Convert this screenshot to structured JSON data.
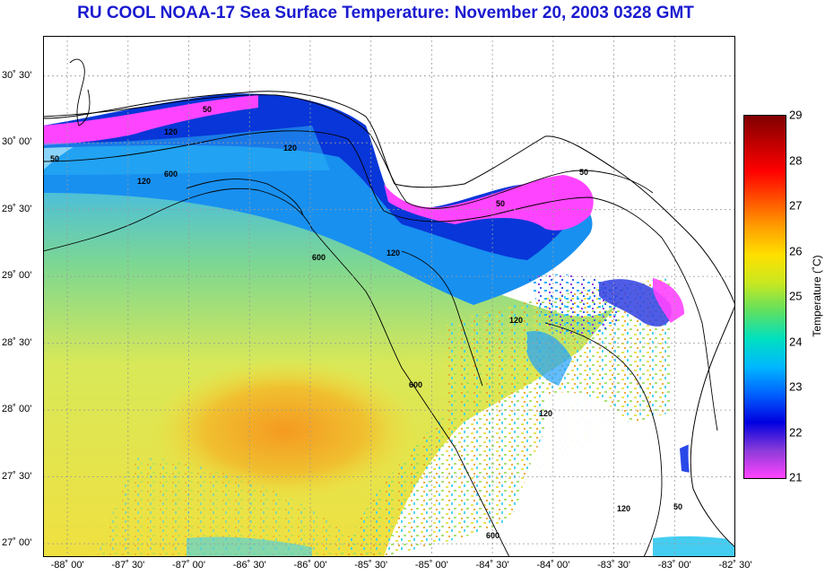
{
  "title": "RU COOL  NOAA-17  Sea Surface Temperature:  November 20, 2003 0328 GMT",
  "map": {
    "lon_range": [
      -88.2,
      -82.5
    ],
    "lat_range": [
      26.9,
      30.8
    ],
    "lat_labels": [
      {
        "value": 30.5,
        "text": "30˚ 30'"
      },
      {
        "value": 30.0,
        "text": "30˚ 00'"
      },
      {
        "value": 29.5,
        "text": "29˚ 30'"
      },
      {
        "value": 29.0,
        "text": "29˚ 00'"
      },
      {
        "value": 28.5,
        "text": "28˚ 30'"
      },
      {
        "value": 28.0,
        "text": "28˚ 00'"
      },
      {
        "value": 27.5,
        "text": "27˚ 30'"
      },
      {
        "value": 27.0,
        "text": "27˚ 00'"
      }
    ],
    "lon_labels": [
      {
        "value": -88.0,
        "text": "-88˚ 00'"
      },
      {
        "value": -87.5,
        "text": "-87˚ 30'"
      },
      {
        "value": -87.0,
        "text": "-87˚ 00'"
      },
      {
        "value": -86.5,
        "text": "-86˚ 30'"
      },
      {
        "value": -86.0,
        "text": "-86˚ 00'"
      },
      {
        "value": -85.5,
        "text": "-85˚ 30'"
      },
      {
        "value": -85.0,
        "text": "-85˚ 00'"
      },
      {
        "value": -84.5,
        "text": "-84˚ 30'"
      },
      {
        "value": -84.0,
        "text": "-84˚ 00'"
      },
      {
        "value": -83.5,
        "text": "-83˚ 30'"
      },
      {
        "value": -83.0,
        "text": "-83˚ 00'"
      },
      {
        "value": -82.5,
        "text": "-82˚ 30'"
      }
    ],
    "depth_labels": [
      "50",
      "120",
      "600",
      "120",
      "50",
      "120",
      "600",
      "120",
      "600",
      "120",
      "120",
      "50",
      "50",
      "50",
      "120",
      "600"
    ]
  },
  "colorbar": {
    "label": "Temperature (˚C)",
    "min": 21,
    "max": 29,
    "ticks": [
      "29",
      "28",
      "27",
      "26",
      "25",
      "24",
      "23",
      "22",
      "21"
    ],
    "colors": [
      "#ff44ff",
      "#8a3bd8",
      "#0000e0",
      "#0060ff",
      "#00b8ff",
      "#00e0c0",
      "#60e060",
      "#c8e820",
      "#ffe000",
      "#ffa000",
      "#ff5000",
      "#ff0000",
      "#c00000",
      "#800000"
    ]
  }
}
